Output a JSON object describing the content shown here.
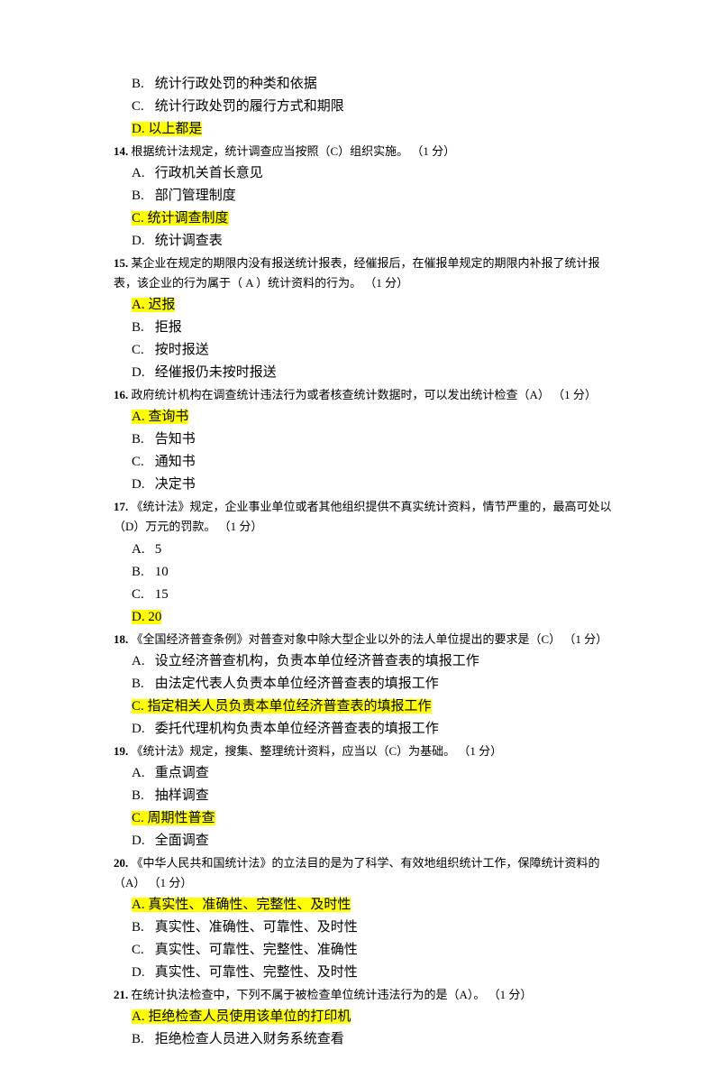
{
  "items": [
    {
      "type": "option",
      "letter": "B.",
      "text": "统计行政处罚的种类和依据",
      "highlighted": false
    },
    {
      "type": "option",
      "letter": "C.",
      "text": "统计行政处罚的履行方式和期限",
      "highlighted": false
    },
    {
      "type": "option",
      "letter": "D.",
      "text": "以上都是",
      "highlighted": true
    },
    {
      "type": "question",
      "num": "14.",
      "text": "根据统计法规定，统计调查应当按照（C）组织实施。",
      "score": "（1 分）"
    },
    {
      "type": "option",
      "letter": "A.",
      "text": "行政机关首长意见",
      "highlighted": false
    },
    {
      "type": "option",
      "letter": "B.",
      "text": "部门管理制度",
      "highlighted": false
    },
    {
      "type": "option",
      "letter": "C.",
      "text": "统计调查制度",
      "highlighted": true
    },
    {
      "type": "option",
      "letter": "D.",
      "text": "统计调查表",
      "highlighted": false
    },
    {
      "type": "question",
      "num": "15.",
      "text": "某企业在规定的期限内没有报送统计报表，经催报后，在催报单规定的期限内补报了统计报表，该企业的行为属于（ A ）统计资料的行为。",
      "score": "（1 分）"
    },
    {
      "type": "option",
      "letter": "A.",
      "text": "迟报",
      "highlighted": true
    },
    {
      "type": "option",
      "letter": "B.",
      "text": "拒报",
      "highlighted": false
    },
    {
      "type": "option",
      "letter": "C.",
      "text": "按时报送",
      "highlighted": false
    },
    {
      "type": "option",
      "letter": "D.",
      "text": "经催报仍未按时报送",
      "highlighted": false
    },
    {
      "type": "question",
      "num": "16.",
      "text": "政府统计机构在调查统计违法行为或者核查统计数据时，可以发出统计检查（A）",
      "score": "（1 分）"
    },
    {
      "type": "option",
      "letter": "A.",
      "text": "查询书",
      "highlighted": true
    },
    {
      "type": "option",
      "letter": "B.",
      "text": "告知书",
      "highlighted": false
    },
    {
      "type": "option",
      "letter": "C.",
      "text": "通知书",
      "highlighted": false
    },
    {
      "type": "option",
      "letter": "D.",
      "text": "决定书",
      "highlighted": false
    },
    {
      "type": "question",
      "num": "17.",
      "text": "《统计法》规定，企业事业单位或者其他组织提供不真实统计资料，情节严重的，最高可处以（D）万元的罚款。",
      "score": "（1 分）"
    },
    {
      "type": "option",
      "letter": "A.",
      "text": "5",
      "highlighted": false
    },
    {
      "type": "option",
      "letter": "B.",
      "text": "10",
      "highlighted": false
    },
    {
      "type": "option",
      "letter": "C.",
      "text": "15",
      "highlighted": false
    },
    {
      "type": "option",
      "letter": "D.",
      "text": "20",
      "highlighted": true
    },
    {
      "type": "question",
      "num": "18.",
      "text": "《全国经济普查条例》对普查对象中除大型企业以外的法人单位提出的要求是（C）",
      "score": "（1 分）"
    },
    {
      "type": "option",
      "letter": "A.",
      "text": "设立经济普查机构，负责本单位经济普查表的填报工作",
      "highlighted": false
    },
    {
      "type": "option",
      "letter": "B.",
      "text": "由法定代表人负责本单位经济普查表的填报工作",
      "highlighted": false
    },
    {
      "type": "option",
      "letter": "C.",
      "text": "指定相关人员负责本单位经济普查表的填报工作",
      "highlighted": true
    },
    {
      "type": "option",
      "letter": "D.",
      "text": "委托代理机构负责本单位经济普查表的填报工作",
      "highlighted": false
    },
    {
      "type": "question",
      "num": "19.",
      "text": "《统计法》规定，搜集、整理统计资料，应当以（C）为基础。",
      "score": "（1 分）"
    },
    {
      "type": "option",
      "letter": "A.",
      "text": "重点调查",
      "highlighted": false
    },
    {
      "type": "option",
      "letter": "B.",
      "text": "抽样调查",
      "highlighted": false
    },
    {
      "type": "option",
      "letter": "C.",
      "text": "周期性普查",
      "highlighted": true
    },
    {
      "type": "option",
      "letter": "D.",
      "text": "全面调查",
      "highlighted": false
    },
    {
      "type": "question",
      "num": "20.",
      "text": "《中华人民共和国统计法》的立法目的是为了科学、有效地组织统计工作，保障统计资料的（A）",
      "score": "（1 分）"
    },
    {
      "type": "option",
      "letter": "A.",
      "text": "真实性、准确性、完整性、及时性",
      "highlighted": true
    },
    {
      "type": "option",
      "letter": "B.",
      "text": "真实性、准确性、可靠性、及时性",
      "highlighted": false
    },
    {
      "type": "option",
      "letter": "C.",
      "text": "真实性、可靠性、完整性、准确性",
      "highlighted": false
    },
    {
      "type": "option",
      "letter": "D.",
      "text": "真实性、可靠性、完整性、及时性",
      "highlighted": false
    },
    {
      "type": "question",
      "num": "21.",
      "text": "在统计执法检查中，下列不属于被检查单位统计违法行为的是（A）。",
      "score": "（1 分）"
    },
    {
      "type": "option",
      "letter": "A.",
      "text": "拒绝检查人员使用该单位的打印机",
      "highlighted": true
    },
    {
      "type": "option",
      "letter": "B.",
      "text": "拒绝检查人员进入财务系统查看",
      "highlighted": false
    }
  ],
  "colors": {
    "highlight": "#ffff00",
    "text": "#000000",
    "background": "#ffffff"
  }
}
